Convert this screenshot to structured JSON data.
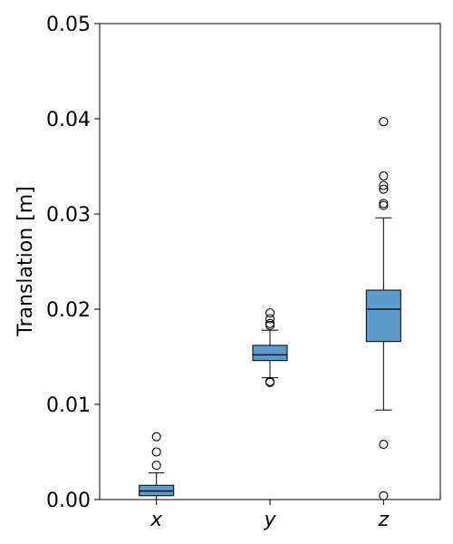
{
  "chart_data": {
    "type": "box",
    "ylabel": "Translation [m]",
    "ylim": [
      0,
      0.05
    ],
    "yticks": [
      "0.00",
      "0.01",
      "0.02",
      "0.03",
      "0.04",
      "0.05"
    ],
    "ytick_values": [
      0,
      0.01,
      0.02,
      0.03,
      0.04,
      0.05
    ],
    "grid": false,
    "colors": {
      "box_fill": "#5b9ac9",
      "line": "#000000"
    },
    "categories": [
      "x",
      "y",
      "z"
    ],
    "boxes": [
      {
        "category": "x",
        "whisker_low": 0.0,
        "q1": 0.0004,
        "median": 0.0009,
        "q3": 0.0015,
        "whisker_high": 0.0028,
        "outliers": [
          0.0036,
          0.005,
          0.0066
        ]
      },
      {
        "category": "y",
        "whisker_low": 0.0128,
        "q1": 0.0146,
        "median": 0.0152,
        "q3": 0.0162,
        "whisker_high": 0.0178,
        "outliers": [
          0.0123,
          0.0124,
          0.0183,
          0.0185,
          0.019,
          0.0196
        ]
      },
      {
        "category": "z",
        "whisker_low": 0.0094,
        "q1": 0.0166,
        "median": 0.02,
        "q3": 0.022,
        "whisker_high": 0.0296,
        "outliers": [
          0.0004,
          0.0058,
          0.0309,
          0.0311,
          0.0326,
          0.033,
          0.034,
          0.0397
        ]
      }
    ]
  }
}
